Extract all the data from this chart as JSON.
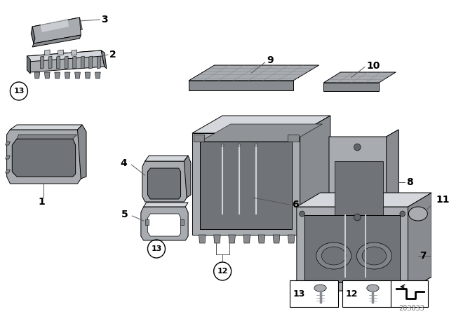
{
  "bg_color": "#ffffff",
  "diagram_number": "203833",
  "part_gray_light": "#c0c4c8",
  "part_gray_mid": "#a8acb0",
  "part_gray_dark": "#888c90",
  "part_gray_shadow": "#707478",
  "part_gray_top": "#d4d8dc",
  "line_color": "#000000",
  "label_line_color": "#555555"
}
